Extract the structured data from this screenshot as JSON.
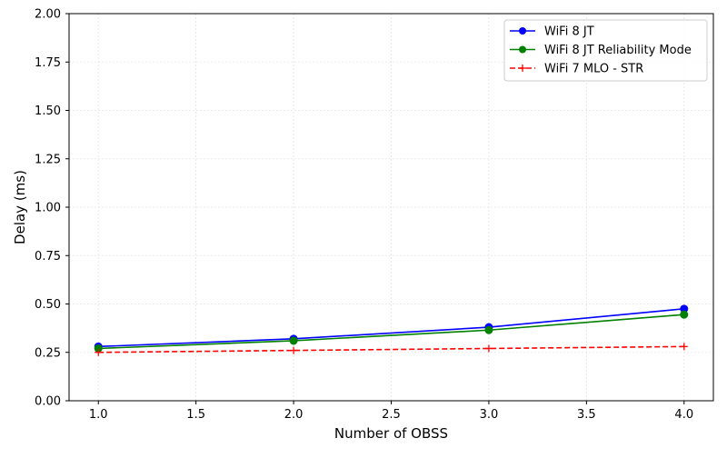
{
  "chart_data": {
    "type": "line",
    "title": "",
    "xlabel": "Number of OBSS",
    "ylabel": "Delay (ms)",
    "xlim": [
      0.85,
      4.15
    ],
    "ylim": [
      0.0,
      2.0
    ],
    "x": [
      1.0,
      2.0,
      3.0,
      4.0
    ],
    "xticks": [
      1.0,
      1.5,
      2.0,
      2.5,
      3.0,
      3.5,
      4.0
    ],
    "xtick_labels": [
      "1.0",
      "1.5",
      "2.0",
      "2.5",
      "3.0",
      "3.5",
      "4.0"
    ],
    "yticks": [
      0.0,
      0.25,
      0.5,
      0.75,
      1.0,
      1.25,
      1.5,
      1.75,
      2.0
    ],
    "ytick_labels": [
      "0.00",
      "0.25",
      "0.50",
      "0.75",
      "1.00",
      "1.25",
      "1.50",
      "1.75",
      "2.00"
    ],
    "grid": true,
    "legend_position": "top-right",
    "series": [
      {
        "name": "WiFi 8 JT",
        "values": [
          0.28,
          0.32,
          0.38,
          0.475
        ],
        "color": "#0000ff",
        "line_style": "solid",
        "marker": "circle"
      },
      {
        "name": "WiFi 8 JT Reliability Mode",
        "values": [
          0.27,
          0.31,
          0.365,
          0.445
        ],
        "color": "#008000",
        "line_style": "solid",
        "marker": "circle"
      },
      {
        "name": "WiFi 7 MLO - STR",
        "values": [
          0.25,
          0.26,
          0.27,
          0.28
        ],
        "color": "#ff0000",
        "line_style": "dashed",
        "marker": "plus"
      }
    ]
  }
}
